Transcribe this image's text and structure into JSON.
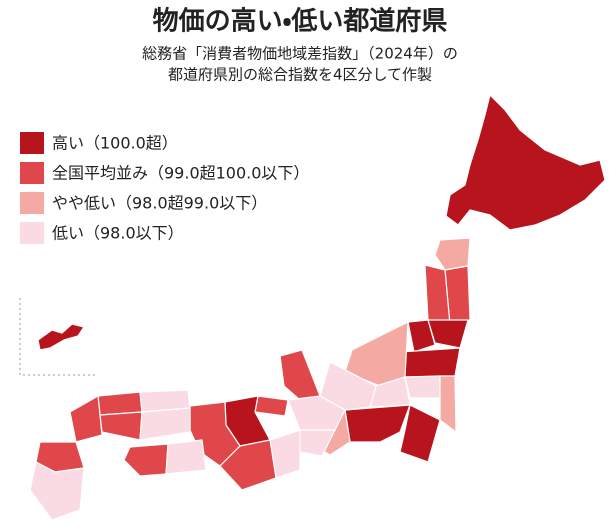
{
  "header": {
    "title": "物価の高い・低い都道府県",
    "subtitle_lines": [
      "総務省「消費者物価地域差指数」（2024年）の",
      "都道府県別の総合指数を4区分して作製"
    ]
  },
  "legend": {
    "items": [
      {
        "label": "高い（100.0超）",
        "color": "#b8141e"
      },
      {
        "label": "全国平均並み（99.0超100.0以下）",
        "color": "#e0474b"
      },
      {
        "label": "やや低い（98.0超99.0以下）",
        "color": "#f4aaa3"
      },
      {
        "label": "低い（98.0以下）",
        "color": "#fadbe3"
      }
    ]
  }
}
